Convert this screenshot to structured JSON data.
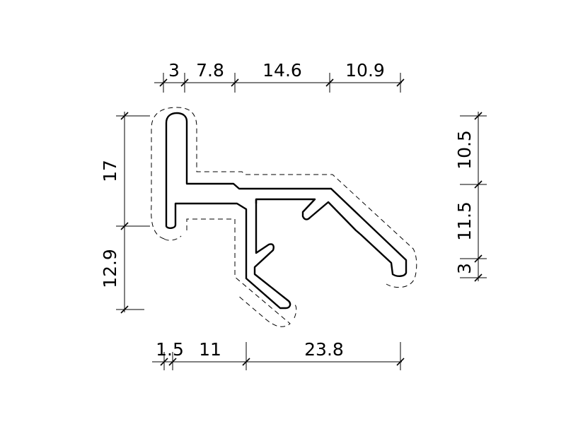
{
  "dimensions": {
    "top": [
      "3",
      "7.8",
      "14.6",
      "10.9"
    ],
    "bottom": [
      "1.5",
      "11",
      "23.8"
    ],
    "left": [
      "17",
      "12.9"
    ],
    "right": [
      "10.5",
      "11.5",
      "3"
    ]
  }
}
